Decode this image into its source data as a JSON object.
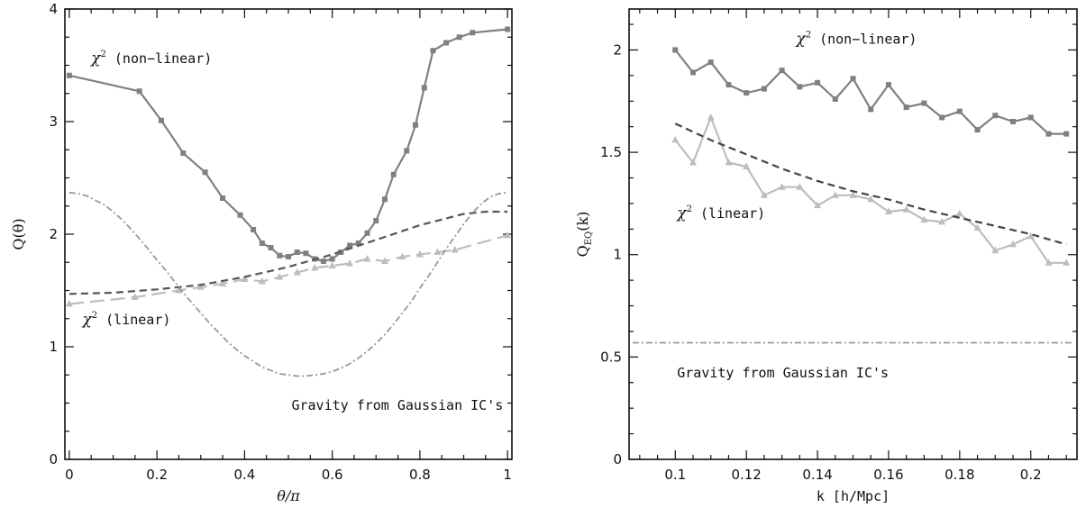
{
  "chart_data": [
    {
      "type": "line",
      "xlabel": "θ/π",
      "ylabel": "Q(θ)",
      "xlim": [
        -0.01,
        1.01
      ],
      "ylim": [
        0,
        4
      ],
      "xticks": [
        0,
        0.2,
        0.4,
        0.6,
        0.8,
        1
      ],
      "xtick_labels": [
        "0",
        "0.2",
        "0.4",
        "0.6",
        "0.8",
        "1"
      ],
      "yticks": [
        0,
        1,
        2,
        3,
        4
      ],
      "ytick_labels": [
        "0",
        "1",
        "2",
        "3",
        "4"
      ],
      "annotations": [
        {
          "text_chi": "χ",
          "text_sup": "2",
          "text_rest": " (non−linear)",
          "x": 0.05,
          "y": 3.52
        },
        {
          "text_chi": "χ",
          "text_sup": "2",
          "text_rest": " (linear)",
          "x": 0.03,
          "y": 1.2
        },
        {
          "text": "Gravity from Gaussian IC's",
          "x": 0.99,
          "y": 0.44,
          "align": "end"
        }
      ],
      "series": [
        {
          "style": "solid-square",
          "color": "#808080",
          "x": [
            0.0,
            0.16,
            0.21,
            0.26,
            0.31,
            0.35,
            0.39,
            0.42,
            0.44,
            0.46,
            0.48,
            0.5,
            0.52,
            0.54,
            0.56,
            0.58,
            0.6,
            0.62,
            0.64,
            0.66,
            0.68,
            0.7,
            0.72,
            0.74,
            0.77,
            0.79,
            0.81,
            0.83,
            0.86,
            0.89,
            0.92,
            1.0
          ],
          "y": [
            3.41,
            3.27,
            3.01,
            2.72,
            2.55,
            2.32,
            2.17,
            2.04,
            1.92,
            1.88,
            1.81,
            1.8,
            1.84,
            1.83,
            1.78,
            1.76,
            1.78,
            1.84,
            1.9,
            1.92,
            2.01,
            2.12,
            2.31,
            2.53,
            2.74,
            2.97,
            3.3,
            3.63,
            3.7,
            3.75,
            3.79,
            3.82
          ]
        },
        {
          "style": "long-dash-triangle",
          "color": "#bdbdbd",
          "x": [
            0.0,
            0.15,
            0.25,
            0.3,
            0.35,
            0.4,
            0.44,
            0.48,
            0.52,
            0.56,
            0.6,
            0.64,
            0.68,
            0.72,
            0.76,
            0.8,
            0.84,
            0.88,
            1.0
          ],
          "y": [
            1.38,
            1.44,
            1.5,
            1.53,
            1.56,
            1.6,
            1.58,
            1.62,
            1.66,
            1.7,
            1.72,
            1.74,
            1.78,
            1.76,
            1.8,
            1.82,
            1.84,
            1.86,
            1.99
          ]
        },
        {
          "style": "dashed",
          "color": "#555555",
          "x": [
            0.0,
            0.1,
            0.2,
            0.3,
            0.4,
            0.5,
            0.6,
            0.7,
            0.8,
            0.9,
            0.95,
            1.0
          ],
          "y": [
            1.47,
            1.48,
            1.51,
            1.55,
            1.62,
            1.71,
            1.82,
            1.95,
            2.08,
            2.18,
            2.2,
            2.2
          ]
        },
        {
          "style": "dash-dot",
          "color": "#999999",
          "x": [
            0.0,
            0.02,
            0.04,
            0.06,
            0.08,
            0.1,
            0.12,
            0.14,
            0.16,
            0.18,
            0.2,
            0.22,
            0.24,
            0.26,
            0.28,
            0.3,
            0.32,
            0.34,
            0.36,
            0.38,
            0.4,
            0.42,
            0.44,
            0.46,
            0.48,
            0.5,
            0.52,
            0.54,
            0.56,
            0.58,
            0.6,
            0.62,
            0.64,
            0.66,
            0.68,
            0.7,
            0.72,
            0.74,
            0.76,
            0.78,
            0.8,
            0.82,
            0.84,
            0.86,
            0.88,
            0.9,
            0.92,
            0.94,
            0.96,
            0.98,
            1.0
          ],
          "y": [
            2.37,
            2.36,
            2.34,
            2.3,
            2.26,
            2.2,
            2.13,
            2.05,
            1.96,
            1.87,
            1.77,
            1.68,
            1.58,
            1.48,
            1.39,
            1.3,
            1.21,
            1.13,
            1.05,
            0.98,
            0.92,
            0.87,
            0.82,
            0.79,
            0.76,
            0.75,
            0.74,
            0.74,
            0.75,
            0.76,
            0.78,
            0.81,
            0.85,
            0.9,
            0.96,
            1.03,
            1.11,
            1.2,
            1.3,
            1.4,
            1.52,
            1.63,
            1.75,
            1.87,
            1.98,
            2.09,
            2.19,
            2.27,
            2.33,
            2.36,
            2.37
          ]
        }
      ]
    },
    {
      "type": "line",
      "xlabel": "k [h/Mpc]",
      "ylabel_main": "Q",
      "ylabel_sub": "EQ",
      "ylabel_rest": "(k)",
      "xlim": [
        0.087,
        0.213
      ],
      "ylim": [
        0,
        2.2
      ],
      "xticks": [
        0.1,
        0.12,
        0.14,
        0.16,
        0.18,
        0.2
      ],
      "xtick_labels": [
        "0.1",
        "0.12",
        "0.14",
        "0.16",
        "0.18",
        "0.2"
      ],
      "yticks": [
        0,
        0.5,
        1,
        1.5,
        2
      ],
      "ytick_labels": [
        "0",
        "0.5",
        "1",
        "1.5",
        "2"
      ],
      "annotations": [
        {
          "text_chi": "χ",
          "text_sup": "2",
          "text_rest": " (non−linear)",
          "x": 0.134,
          "y": 2.03
        },
        {
          "text_chi": "χ",
          "text_sup": "2",
          "text_rest": " (linear)",
          "x": 0.1005,
          "y": 1.18
        },
        {
          "text": "Gravity from Gaussian IC's",
          "x": 0.1005,
          "y": 0.4,
          "align": "start"
        }
      ],
      "series": [
        {
          "style": "solid-square",
          "color": "#808080",
          "x": [
            0.1,
            0.105,
            0.11,
            0.115,
            0.12,
            0.125,
            0.13,
            0.135,
            0.14,
            0.145,
            0.15,
            0.155,
            0.16,
            0.165,
            0.17,
            0.175,
            0.18,
            0.185,
            0.19,
            0.195,
            0.2,
            0.205,
            0.21
          ],
          "y": [
            2.0,
            1.89,
            1.94,
            1.83,
            1.79,
            1.81,
            1.9,
            1.82,
            1.84,
            1.76,
            1.86,
            1.71,
            1.83,
            1.72,
            1.74,
            1.67,
            1.7,
            1.61,
            1.68,
            1.65,
            1.67,
            1.59,
            1.59
          ]
        },
        {
          "style": "solid-triangle",
          "color": "#bdbdbd",
          "x": [
            0.1,
            0.105,
            0.11,
            0.115,
            0.12,
            0.125,
            0.13,
            0.135,
            0.14,
            0.145,
            0.15,
            0.155,
            0.16,
            0.165,
            0.17,
            0.175,
            0.18,
            0.185,
            0.19,
            0.195,
            0.2,
            0.205,
            0.21
          ],
          "y": [
            1.56,
            1.45,
            1.67,
            1.45,
            1.43,
            1.29,
            1.33,
            1.33,
            1.24,
            1.29,
            1.29,
            1.27,
            1.21,
            1.22,
            1.17,
            1.16,
            1.2,
            1.13,
            1.02,
            1.05,
            1.09,
            0.96,
            0.96
          ]
        },
        {
          "style": "dashed",
          "color": "#444444",
          "x": [
            0.1,
            0.11,
            0.12,
            0.13,
            0.14,
            0.15,
            0.16,
            0.17,
            0.18,
            0.19,
            0.2,
            0.21
          ],
          "y": [
            1.64,
            1.56,
            1.49,
            1.42,
            1.36,
            1.31,
            1.27,
            1.22,
            1.18,
            1.14,
            1.1,
            1.05
          ]
        },
        {
          "style": "dash-dot",
          "color": "#999999",
          "x": [
            0.088,
            0.212
          ],
          "y": [
            0.57,
            0.57
          ]
        }
      ]
    }
  ]
}
